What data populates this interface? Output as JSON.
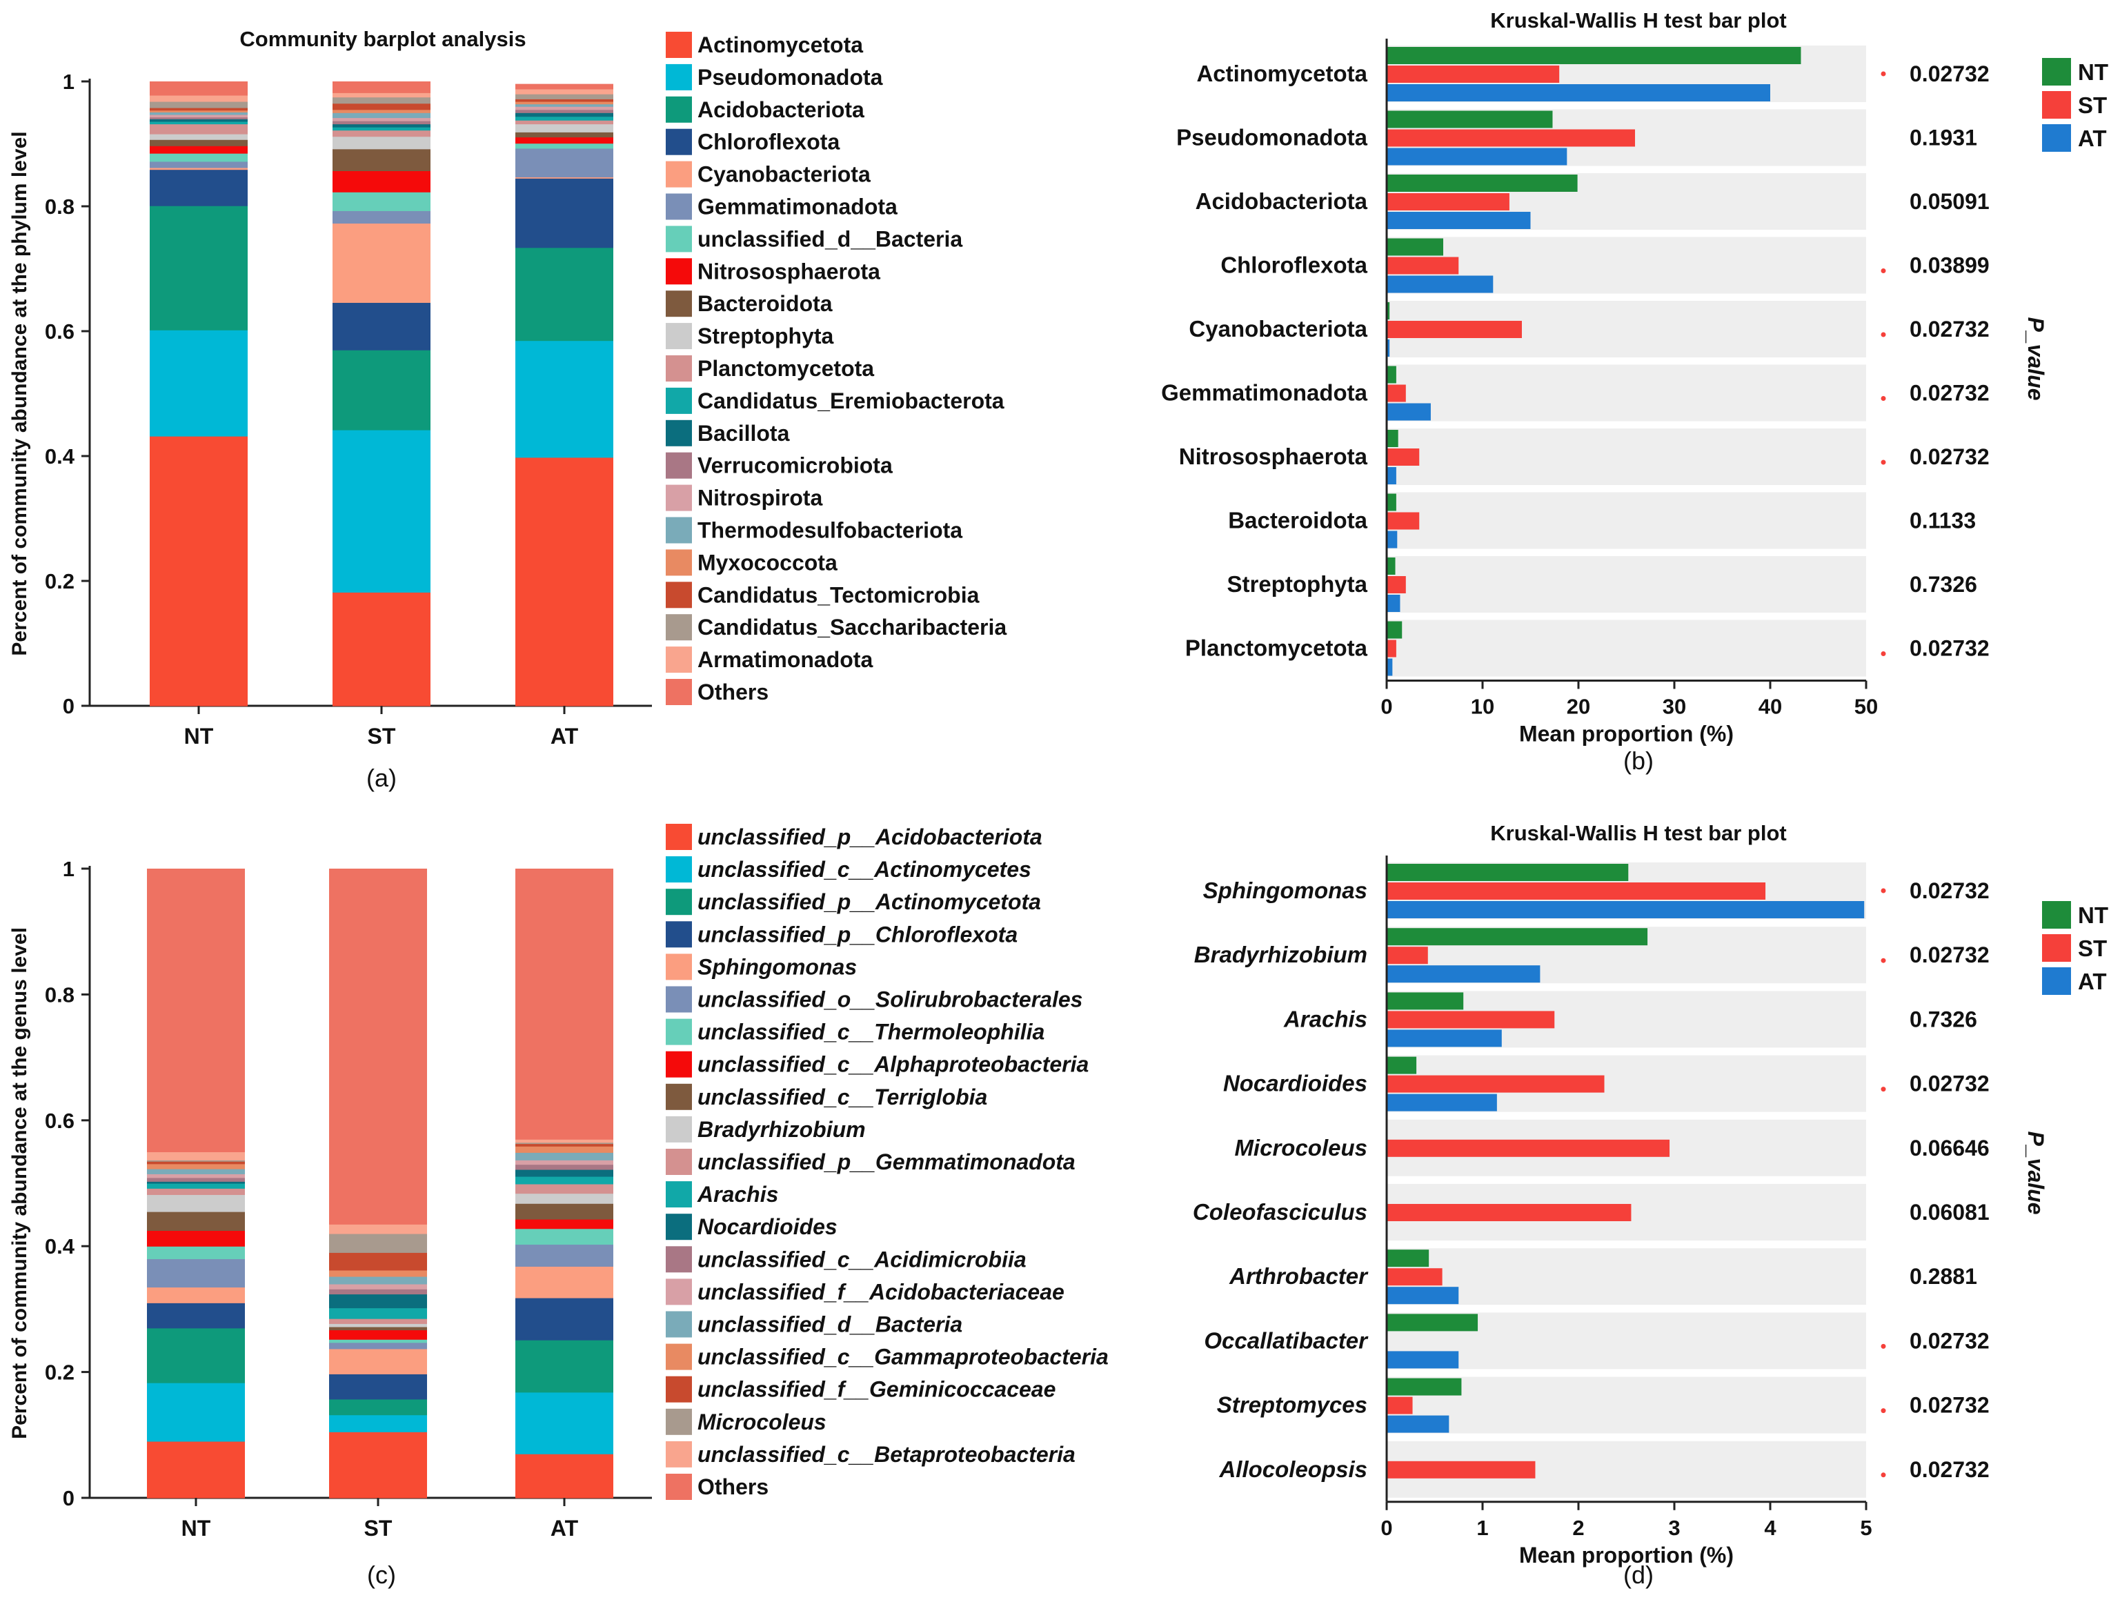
{
  "colors": {
    "NT": "#1E8C3A",
    "ST": "#F5403A",
    "AT": "#1F7BD0",
    "panel_bg": "#EEEEEE",
    "star": "#F5403A"
  },
  "chart_data": [
    {
      "panel": "a",
      "type": "bar",
      "stacked": true,
      "title": "Community barplot analysis",
      "ylabel": "Percent of community abundance at the phylum level",
      "xlabel": "",
      "caption": "(a)",
      "categories": [
        "NT",
        "ST",
        "AT"
      ],
      "ylim": [
        0,
        1
      ],
      "yticks": [
        "0",
        "0.2",
        "0.4",
        "0.6",
        "0.8",
        "1"
      ],
      "legend_placement": "right",
      "series": [
        {
          "name": "Actinomycetota",
          "color": "#F84B33",
          "values": [
            0.432,
            0.182,
            0.398
          ]
        },
        {
          "name": "Pseudomonadota",
          "color": "#00B8D6",
          "values": [
            0.17,
            0.26,
            0.187
          ]
        },
        {
          "name": "Acidobacteriota",
          "color": "#0E9A7B",
          "values": [
            0.199,
            0.128,
            0.149
          ]
        },
        {
          "name": "Chloroflexota",
          "color": "#224E8C",
          "values": [
            0.058,
            0.076,
            0.111
          ]
        },
        {
          "name": "Cyanobacteriota",
          "color": "#FB9E80",
          "values": [
            0.003,
            0.127,
            0.002
          ]
        },
        {
          "name": "Gemmatimonadota",
          "color": "#7A8FB7",
          "values": [
            0.01,
            0.02,
            0.046
          ]
        },
        {
          "name": "unclassified_d__Bacteria",
          "color": "#66CFB9",
          "values": [
            0.013,
            0.03,
            0.008
          ]
        },
        {
          "name": "Nitrososphaerota",
          "color": "#F50A0A",
          "values": [
            0.012,
            0.034,
            0.01
          ]
        },
        {
          "name": "Bacteroidota",
          "color": "#7E5A3E",
          "values": [
            0.01,
            0.035,
            0.008
          ]
        },
        {
          "name": "Streptophyta",
          "color": "#CCCCCC",
          "values": [
            0.009,
            0.02,
            0.013
          ]
        },
        {
          "name": "Planctomycetota",
          "color": "#D49190",
          "values": [
            0.016,
            0.01,
            0.006
          ]
        },
        {
          "name": "Candidatus_Eremiobacterota",
          "color": "#11A8A8",
          "values": [
            0.004,
            0.005,
            0.006
          ]
        },
        {
          "name": "Bacillota",
          "color": "#0B6E7E",
          "values": [
            0.004,
            0.005,
            0.006
          ]
        },
        {
          "name": "Verrucomicrobiota",
          "color": "#A97785",
          "values": [
            0.003,
            0.005,
            0.005
          ]
        },
        {
          "name": "Nitrospirota",
          "color": "#D8A0A6",
          "values": [
            0.004,
            0.005,
            0.005
          ]
        },
        {
          "name": "Thermodesulfobacteriota",
          "color": "#7AABB9",
          "values": [
            0.004,
            0.008,
            0.004
          ]
        },
        {
          "name": "Myxococcota",
          "color": "#E88A62",
          "values": [
            0.003,
            0.005,
            0.004
          ]
        },
        {
          "name": "Candidatus_Tectomicrobia",
          "color": "#C84A2E",
          "values": [
            0.004,
            0.01,
            0.004
          ]
        },
        {
          "name": "Candidatus_Saccharibacteria",
          "color": "#A89A8E",
          "values": [
            0.01,
            0.01,
            0.008
          ]
        },
        {
          "name": "Armatimonadota",
          "color": "#F9A58E",
          "values": [
            0.01,
            0.007,
            0.008
          ]
        },
        {
          "name": "Others",
          "color": "#EE7262",
          "values": [
            0.022,
            0.018,
            0.008
          ]
        }
      ]
    },
    {
      "panel": "b",
      "type": "bar",
      "orientation": "horizontal",
      "title": "Kruskal-Wallis H test bar plot",
      "xlabel": "Mean proportion (%)",
      "right_label": "P_value",
      "caption": "(b)",
      "xlim": [
        0,
        50
      ],
      "xticks": [
        "0",
        "10",
        "20",
        "30",
        "40",
        "50"
      ],
      "legend_placement": "right",
      "categories": [
        "Actinomycetota",
        "Pseudomonadota",
        "Acidobacteriota",
        "Chloroflexota",
        "Cyanobacteriota",
        "Gemmatimonadota",
        "Nitrososphaerota",
        "Bacteroidota",
        "Streptophyta",
        "Planctomycetota"
      ],
      "series": [
        {
          "name": "NT",
          "values": [
            43.2,
            17.3,
            19.9,
            5.9,
            0.3,
            1.0,
            1.2,
            1.0,
            0.9,
            1.6
          ]
        },
        {
          "name": "ST",
          "values": [
            18.0,
            25.9,
            12.8,
            7.5,
            14.1,
            2.0,
            3.4,
            3.4,
            2.0,
            1.0
          ]
        },
        {
          "name": "AT",
          "values": [
            40.0,
            18.8,
            15.0,
            11.1,
            0.3,
            4.6,
            1.0,
            1.1,
            1.4,
            0.6
          ]
        }
      ],
      "pvalues": [
        "0.02732",
        "0.1931",
        "0.05091",
        "0.03899",
        "0.02732",
        "0.02732",
        "0.02732",
        "0.1133",
        "0.7326",
        "0.02732"
      ],
      "significant": [
        true,
        false,
        false,
        true,
        true,
        true,
        true,
        false,
        false,
        true
      ]
    },
    {
      "panel": "c",
      "type": "bar",
      "stacked": true,
      "title": "",
      "ylabel": "Percent of community abundance at the genus level",
      "xlabel": "",
      "caption": "(c)",
      "categories": [
        "NT",
        "ST",
        "AT"
      ],
      "ylim": [
        0,
        1
      ],
      "yticks": [
        "0",
        "0.2",
        "0.4",
        "0.6",
        "0.8",
        "1"
      ],
      "legend_placement": "right",
      "legend_italic": true,
      "series": [
        {
          "name": "unclassified_p__Acidobacteriota",
          "color": "#F84B33",
          "values": [
            0.09,
            0.105,
            0.07
          ]
        },
        {
          "name": "unclassified_c__Actinomycetes",
          "color": "#00B8D6",
          "values": [
            0.093,
            0.027,
            0.098
          ]
        },
        {
          "name": "unclassified_p__Actinomycetota",
          "color": "#0E9A7B",
          "values": [
            0.087,
            0.025,
            0.083
          ]
        },
        {
          "name": "unclassified_p__Chloroflexota",
          "color": "#224E8C",
          "values": [
            0.04,
            0.04,
            0.067
          ]
        },
        {
          "name": "Sphingomonas",
          "color": "#FB9E80",
          "values": [
            0.025,
            0.04,
            0.05
          ]
        },
        {
          "name": "unclassified_o__Solirubrobacterales",
          "color": "#7A8FB7",
          "values": [
            0.045,
            0.01,
            0.035
          ]
        },
        {
          "name": "unclassified_c__Thermoleophilia",
          "color": "#66CFB9",
          "values": [
            0.02,
            0.005,
            0.025
          ]
        },
        {
          "name": "unclassified_c__Alphaproteobacteria",
          "color": "#F50A0A",
          "values": [
            0.025,
            0.015,
            0.015
          ]
        },
        {
          "name": "unclassified_c__Terriglobia",
          "color": "#7E5A3E",
          "values": [
            0.03,
            0.005,
            0.025
          ]
        },
        {
          "name": "Bradyrhizobium",
          "color": "#CCCCCC",
          "values": [
            0.027,
            0.005,
            0.016
          ]
        },
        {
          "name": "unclassified_p__Gemmatimonadota",
          "color": "#D49190",
          "values": [
            0.01,
            0.008,
            0.015
          ]
        },
        {
          "name": "Arachis",
          "color": "#11A8A8",
          "values": [
            0.008,
            0.017,
            0.012
          ]
        },
        {
          "name": "Nocardioides",
          "color": "#0B6E7E",
          "values": [
            0.003,
            0.022,
            0.011
          ]
        },
        {
          "name": "unclassified_c__Acidimicrobiia",
          "color": "#A97785",
          "values": [
            0.006,
            0.008,
            0.008
          ]
        },
        {
          "name": "unclassified_f__Acidobacteriaceae",
          "color": "#D8A0A6",
          "values": [
            0.006,
            0.008,
            0.007
          ]
        },
        {
          "name": "unclassified_d__Bacteria",
          "color": "#7AABB9",
          "values": [
            0.008,
            0.012,
            0.012
          ]
        },
        {
          "name": "unclassified_c__Gammaproteobacteria",
          "color": "#E88A62",
          "values": [
            0.008,
            0.01,
            0.01
          ]
        },
        {
          "name": "unclassified_f__Geminicoccaceae",
          "color": "#C84A2E",
          "values": [
            0.004,
            0.028,
            0.004
          ]
        },
        {
          "name": "Microcoleus",
          "color": "#A89A8E",
          "values": [
            0.002,
            0.03,
            0.002
          ]
        },
        {
          "name": "unclassified_c__Betaproteobacteria",
          "color": "#F9A58E",
          "values": [
            0.013,
            0.015,
            0.005
          ]
        },
        {
          "name": "Others",
          "color": "#EE7262",
          "values": [
            0.45,
            0.565,
            0.43
          ]
        }
      ]
    },
    {
      "panel": "d",
      "type": "bar",
      "orientation": "horizontal",
      "title": "Kruskal-Wallis H test bar plot",
      "xlabel": "Mean proportion (%)",
      "right_label": "P_value",
      "caption": "(d)",
      "xlim": [
        0,
        5
      ],
      "xticks": [
        "0",
        "1",
        "2",
        "3",
        "4",
        "5"
      ],
      "legend_placement": "right",
      "category_italic": true,
      "categories": [
        "Sphingomonas",
        "Bradyrhizobium",
        "Arachis",
        "Nocardioides",
        "Microcoleus",
        "Coleofasciculus",
        "Arthrobacter",
        "Occallatibacter",
        "Streptomyces",
        "Allocoleopsis"
      ],
      "series": [
        {
          "name": "NT",
          "values": [
            2.52,
            2.72,
            0.8,
            0.31,
            0.01,
            0.01,
            0.44,
            0.95,
            0.78,
            0.0
          ]
        },
        {
          "name": "ST",
          "values": [
            3.95,
            0.43,
            1.75,
            2.27,
            2.95,
            2.55,
            0.58,
            0.0,
            0.27,
            1.55
          ]
        },
        {
          "name": "AT",
          "values": [
            4.98,
            1.6,
            1.2,
            1.15,
            0.01,
            0.01,
            0.75,
            0.75,
            0.65,
            0.0
          ]
        }
      ],
      "pvalues": [
        "0.02732",
        "0.02732",
        "0.7326",
        "0.02732",
        "0.06646",
        "0.06081",
        "0.2881",
        "0.02732",
        "0.02732",
        "0.02732"
      ],
      "significant": [
        true,
        true,
        false,
        true,
        false,
        false,
        false,
        true,
        true,
        true
      ]
    }
  ]
}
